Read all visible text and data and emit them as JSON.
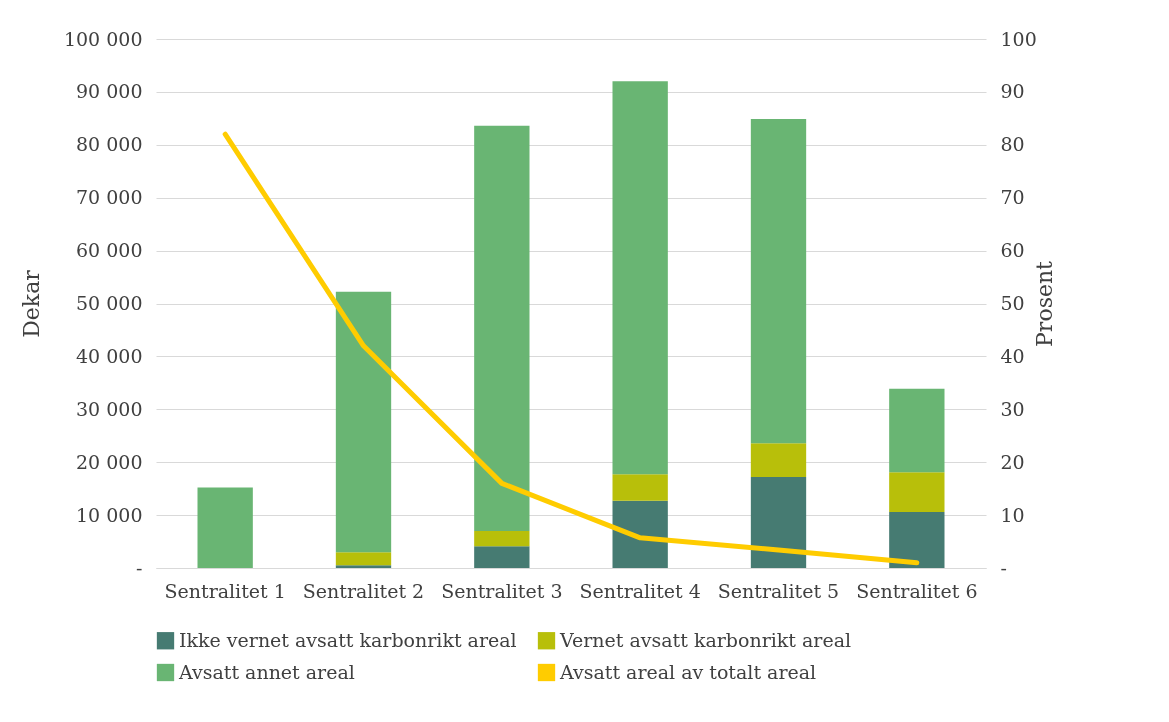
{
  "chart_data": {
    "type": "bar",
    "stacked": true,
    "xlabel": null,
    "ylabel": "Dekar",
    "y2label": "Prosent",
    "categories": [
      "Sentralitet 1",
      "Sentralitet 2",
      "Sentralitet 3",
      "Sentralitet 4",
      "Sentralitet 5",
      "Sentralitet 6"
    ],
    "series": [
      {
        "name": "Ikke vernet avsatt karbonrikt areal",
        "color": "#467b72",
        "values": [
          0,
          500,
          4100,
          12700,
          17200,
          10600
        ]
      },
      {
        "name": "Vernet avsatt karbonrikt areal",
        "color": "#b8bf0a",
        "values": [
          0,
          2500,
          2900,
          5000,
          6400,
          7500
        ]
      },
      {
        "name": "Avsatt annet areal",
        "color": "#69b573",
        "values": [
          15200,
          49200,
          76600,
          74300,
          61300,
          15800
        ]
      },
      {
        "name": "Avsatt areal av totalt areal",
        "color": "#ffcc00",
        "type": "line",
        "axis": "y2",
        "values": [
          82,
          42,
          16,
          5.7,
          3.4,
          1.0
        ]
      }
    ],
    "ylim": [
      0,
      100000
    ],
    "yticks": [
      {
        "value": 0,
        "label": "-"
      },
      {
        "value": 10000,
        "label": "10 000"
      },
      {
        "value": 20000,
        "label": "20 000"
      },
      {
        "value": 30000,
        "label": "30 000"
      },
      {
        "value": 40000,
        "label": "40 000"
      },
      {
        "value": 50000,
        "label": "50 000"
      },
      {
        "value": 60000,
        "label": "60 000"
      },
      {
        "value": 70000,
        "label": "70 000"
      },
      {
        "value": 80000,
        "label": "80 000"
      },
      {
        "value": 90000,
        "label": "90 000"
      },
      {
        "value": 100000,
        "label": "100 000"
      }
    ],
    "y2lim": [
      0,
      100
    ],
    "y2ticks": [
      {
        "value": 0,
        "label": "-"
      },
      10,
      20,
      30,
      40,
      50,
      60,
      70,
      80,
      90,
      100
    ],
    "grid": "y",
    "legend": "bottom",
    "marker": "none",
    "line_style": "solid"
  }
}
